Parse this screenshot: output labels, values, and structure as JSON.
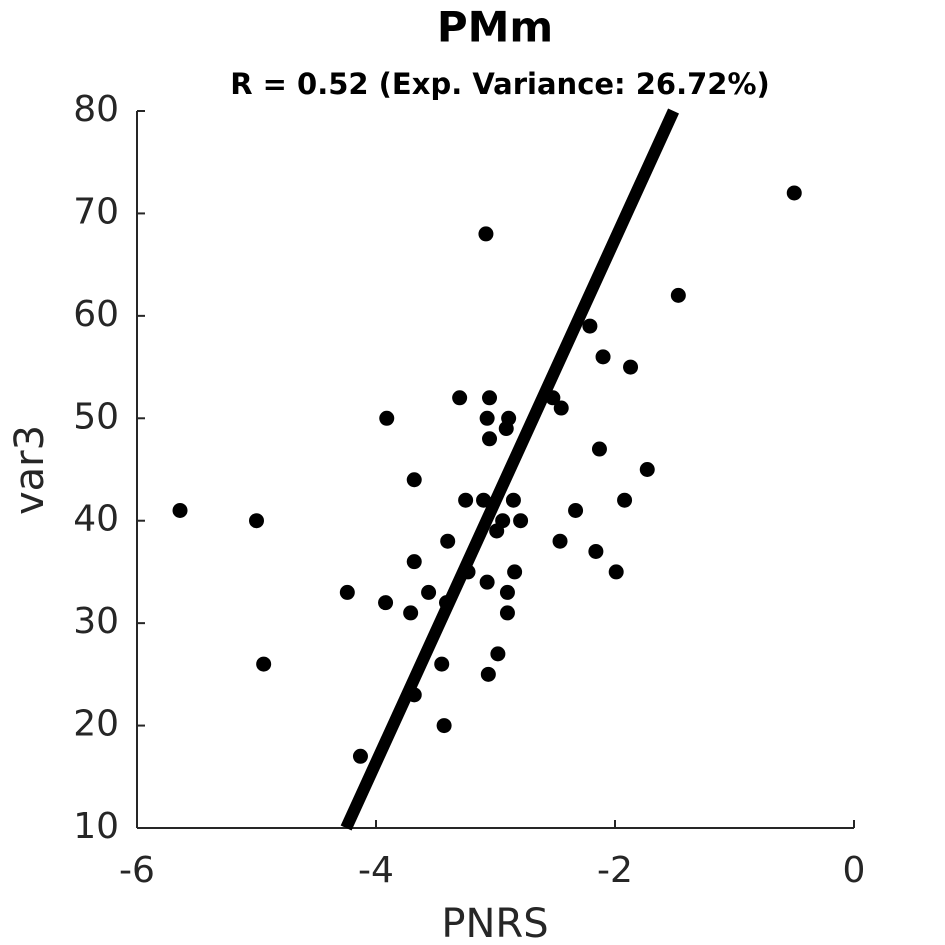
{
  "chart_data": {
    "type": "scatter",
    "title": "PMm",
    "subtitle": "R = 0.52 (Exp. Variance: 26.72%)",
    "x_label": "PNRS",
    "y_label": "var3",
    "xlim": [
      -6,
      0
    ],
    "ylim": [
      10,
      80
    ],
    "xticks": [
      -6,
      -4,
      -2,
      0
    ],
    "yticks": [
      10,
      20,
      30,
      40,
      50,
      60,
      70,
      80
    ],
    "color": "#000000",
    "x": [
      -5.64,
      -5.0,
      -4.94,
      -4.24,
      -4.13,
      -3.92,
      -3.91,
      -3.71,
      -3.68,
      -3.68,
      -3.68,
      -3.56,
      -3.45,
      -3.43,
      -3.41,
      -3.4,
      -3.3,
      -3.25,
      -3.23,
      -3.1,
      -3.08,
      -3.07,
      -3.07,
      -3.06,
      -3.05,
      -3.05,
      -2.99,
      -2.98,
      -2.94,
      -2.91,
      -2.9,
      -2.9,
      -2.89,
      -2.85,
      -2.84,
      -2.79,
      -2.52,
      -2.45,
      -2.46,
      -2.33,
      -2.21,
      -2.16,
      -2.13,
      -2.1,
      -1.99,
      -1.92,
      -1.87,
      -1.73,
      -1.47,
      -0.5
    ],
    "values": [
      41,
      40,
      26,
      33,
      17,
      32,
      50,
      31,
      44,
      36,
      23,
      33,
      26,
      20,
      32,
      38,
      52,
      42,
      35,
      42,
      68,
      50,
      34,
      25,
      52,
      48,
      39,
      27,
      40,
      49,
      33,
      31,
      50,
      42,
      35,
      40,
      52,
      51,
      38,
      41,
      59,
      37,
      47,
      56,
      35,
      42,
      55,
      45,
      62,
      72
    ],
    "fit_line": {
      "x": [
        -4.25,
        -1.51
      ],
      "y": [
        10,
        80
      ]
    }
  }
}
